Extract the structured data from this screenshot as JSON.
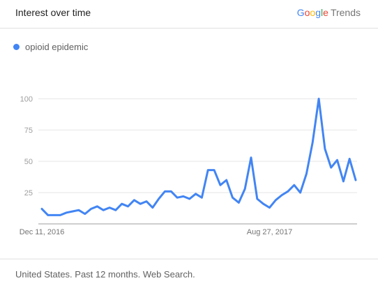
{
  "header": {
    "title": "Interest over time",
    "brand_google_letters": [
      {
        "ch": "G",
        "color": "#4285F4"
      },
      {
        "ch": "o",
        "color": "#EA4335"
      },
      {
        "ch": "o",
        "color": "#FBBC05"
      },
      {
        "ch": "g",
        "color": "#4285F4"
      },
      {
        "ch": "l",
        "color": "#34A853"
      },
      {
        "ch": "e",
        "color": "#EA4335"
      }
    ],
    "brand_trends": "Trends"
  },
  "legend": {
    "label": "opioid epidemic",
    "color": "#4285F4"
  },
  "footer": {
    "text": "United States. Past 12 months. Web Search."
  },
  "chart_data": {
    "type": "line",
    "ylim": [
      0,
      100
    ],
    "y_ticks": [
      "25",
      "50",
      "75",
      "100"
    ],
    "x_tick_labels": [
      {
        "label": "Dec 11, 2016",
        "index": 0
      },
      {
        "label": "Aug 27, 2017",
        "index": 37
      }
    ],
    "grid": true,
    "series": [
      {
        "name": "opioid epidemic",
        "color": "#4285F4",
        "values": [
          12,
          7,
          7,
          7,
          9,
          10,
          11,
          8,
          12,
          14,
          11,
          13,
          11,
          16,
          14,
          19,
          16,
          18,
          13,
          20,
          26,
          26,
          21,
          22,
          20,
          24,
          21,
          43,
          43,
          31,
          35,
          21,
          17,
          28,
          53,
          20,
          16,
          13,
          19,
          23,
          26,
          31,
          25,
          40,
          65,
          100,
          60,
          45,
          51,
          34,
          52,
          35
        ]
      }
    ]
  }
}
